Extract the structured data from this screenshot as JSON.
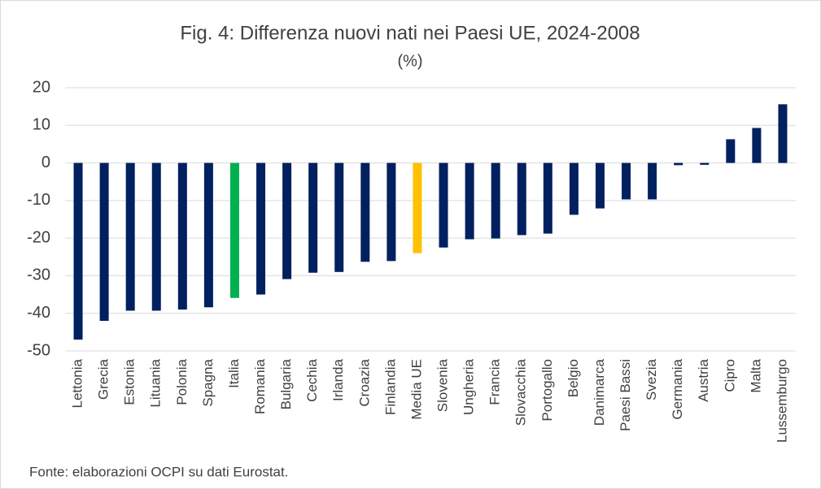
{
  "chart_data": {
    "type": "bar",
    "title": "Fig. 4: Differenza nuovi nati nei Paesi UE, 2024-2008",
    "subtitle": "(%)",
    "source": "Fonte: elaborazioni OCPI su dati Eurostat.",
    "categories": [
      "Lettonia",
      "Grecia",
      "Estonia",
      "Lituania",
      "Polonia",
      "Spagna",
      "Italia",
      "Romania",
      "Bulgaria",
      "Cechia",
      "Irlanda",
      "Croazia",
      "Finlandia",
      "Media UE",
      "Slovenia",
      "Ungheria",
      "Francia",
      "Slovacchia",
      "Portogallo",
      "Belgio",
      "Danimarca",
      "Paesi Bassi",
      "Svezia",
      "Germania",
      "Austria",
      "Cipro",
      "Malta",
      "Lussemburgo"
    ],
    "values": [
      -47,
      -42,
      -39.3,
      -39.3,
      -39,
      -38.4,
      -35.9,
      -35,
      -30.9,
      -29.2,
      -29,
      -26.3,
      -26.1,
      -24,
      -22.5,
      -20.3,
      -20.1,
      -19.2,
      -18.8,
      -13.8,
      -12.1,
      -9.7,
      -9.7,
      -0.6,
      -0.5,
      6.3,
      9.3,
      15.6
    ],
    "colors": [
      "#002060",
      "#002060",
      "#002060",
      "#002060",
      "#002060",
      "#002060",
      "#00b050",
      "#002060",
      "#002060",
      "#002060",
      "#002060",
      "#002060",
      "#002060",
      "#ffc000",
      "#002060",
      "#002060",
      "#002060",
      "#002060",
      "#002060",
      "#002060",
      "#002060",
      "#002060",
      "#002060",
      "#002060",
      "#002060",
      "#002060",
      "#002060",
      "#002060"
    ],
    "ylim": [
      -50,
      20
    ],
    "yticks": [
      -50,
      -40,
      -30,
      -20,
      -10,
      0,
      10,
      20
    ],
    "grid": true
  }
}
